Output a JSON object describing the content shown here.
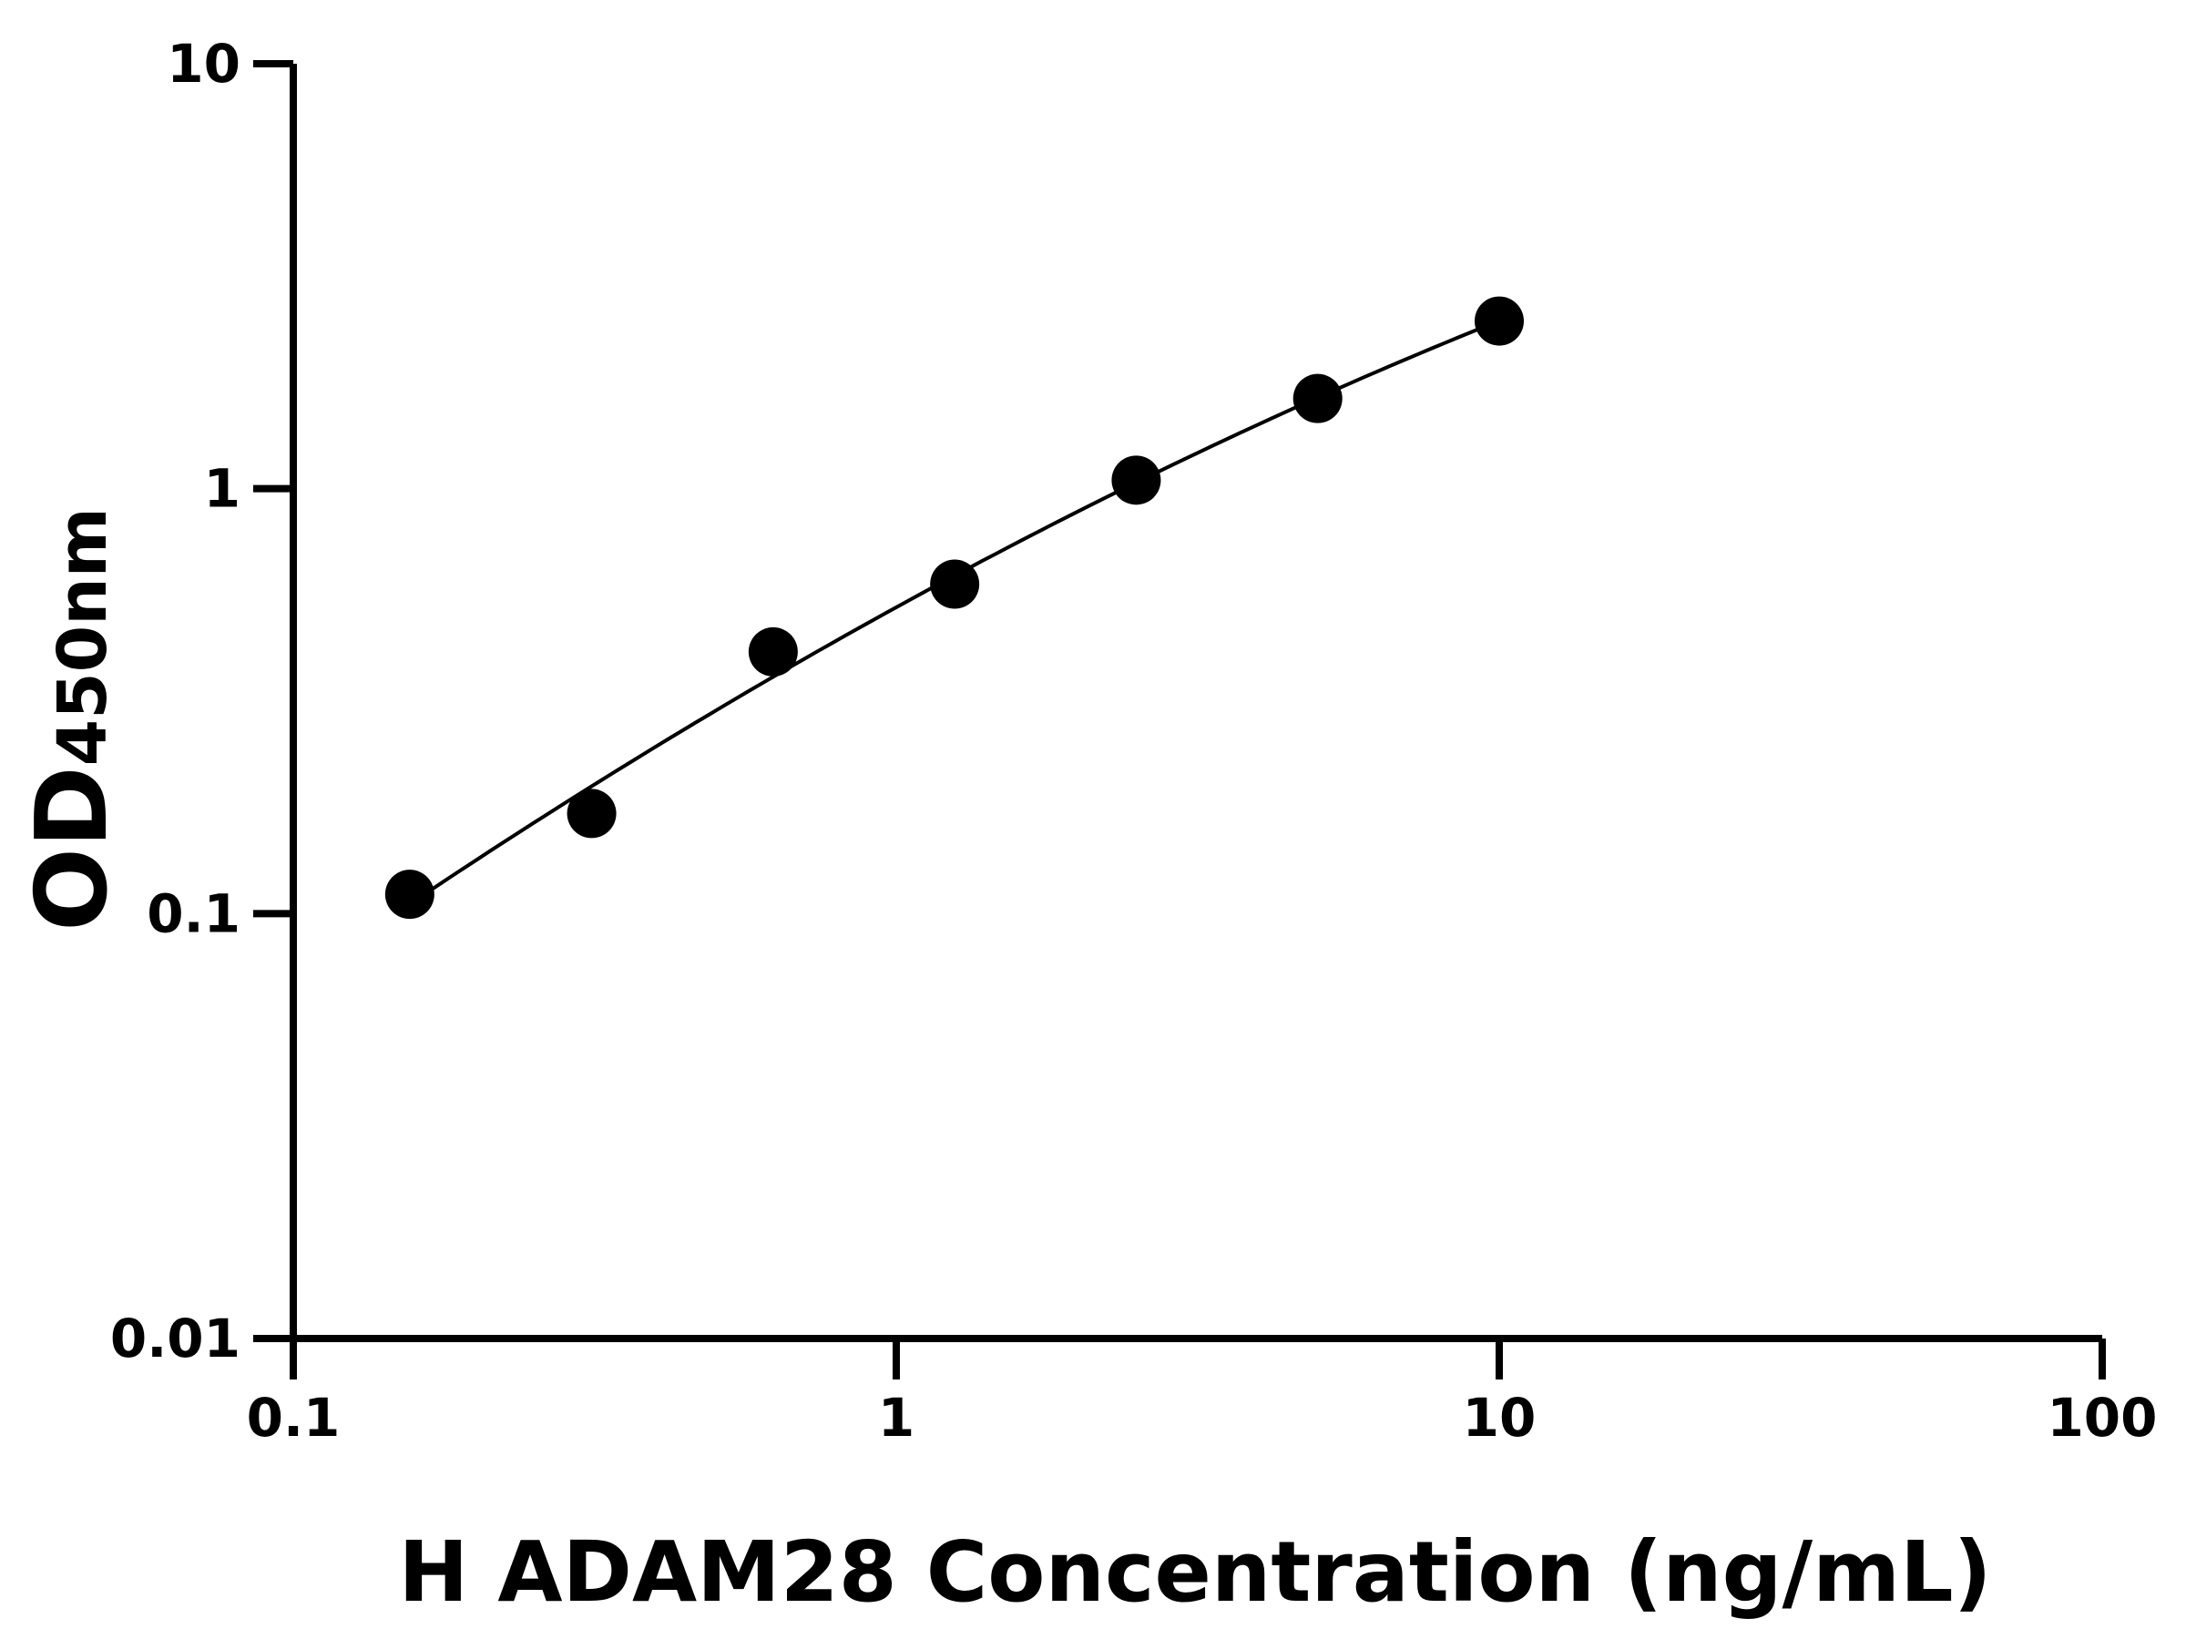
{
  "chart_data": {
    "type": "scatter",
    "title": "",
    "xlabel": "H ADAM28 Concentration (ng/mL)",
    "ylabel_main": "OD",
    "ylabel_sub": "450nm",
    "x_scale": "log",
    "y_scale": "log",
    "xlim": [
      0.1,
      100
    ],
    "ylim": [
      0.01,
      10
    ],
    "x_ticks": [
      {
        "value": 0.1,
        "label": "0.1"
      },
      {
        "value": 1,
        "label": "1"
      },
      {
        "value": 10,
        "label": "10"
      },
      {
        "value": 100,
        "label": "100"
      }
    ],
    "y_ticks": [
      {
        "value": 0.01,
        "label": "0.01"
      },
      {
        "value": 0.1,
        "label": "0.1"
      },
      {
        "value": 1,
        "label": "1"
      },
      {
        "value": 10,
        "label": "10"
      }
    ],
    "grid": false,
    "series": [
      {
        "x": [
          0.156,
          0.3125,
          0.625,
          1.25,
          2.5,
          5,
          10
        ],
        "y": [
          0.111,
          0.172,
          0.413,
          0.596,
          1.047,
          1.63,
          2.48
        ],
        "marker": "filled-circle",
        "fit_line": true
      }
    ],
    "colors": {
      "marks": "#000000",
      "axes": "#000000"
    }
  }
}
